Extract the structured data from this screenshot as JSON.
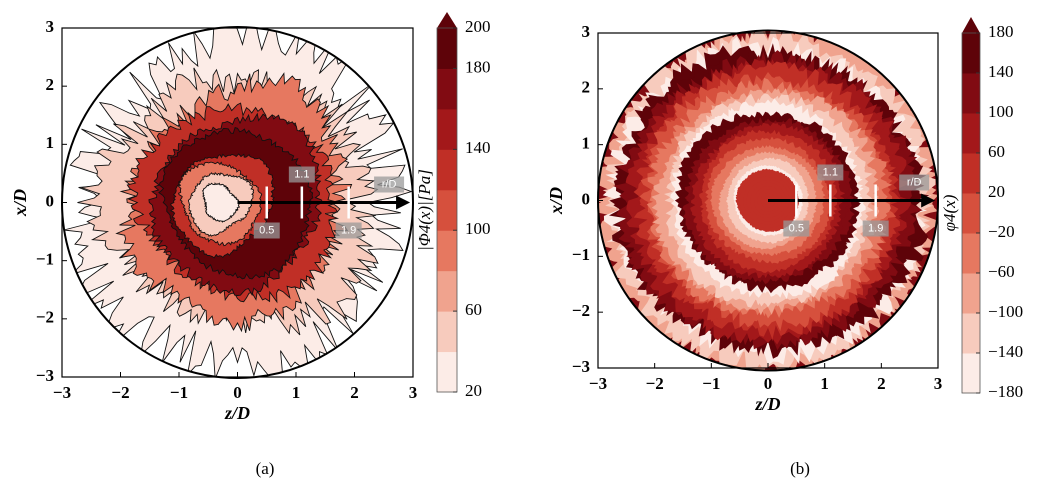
{
  "chart_data": [
    {
      "type": "contour",
      "panel_label": "(a)",
      "xlabel": "z/D",
      "ylabel": "x/D",
      "xlim": [
        -3,
        3
      ],
      "ylim": [
        -3,
        3
      ],
      "xticks": [
        {
          "value": -3,
          "label": "−3"
        },
        {
          "value": -2,
          "label": "−2"
        },
        {
          "value": -1,
          "label": "−1"
        },
        0,
        1,
        2,
        3
      ],
      "yticks": [
        {
          "value": -3,
          "label": "−3"
        },
        {
          "value": -2,
          "label": "−2"
        },
        {
          "value": -1,
          "label": "−1"
        },
        0,
        1,
        2,
        3
      ],
      "radial_markers": [
        0.5,
        1.1,
        1.9
      ],
      "arrow_label": "r/D",
      "colorbar": {
        "label": "|Φ4(x)|[Pa]",
        "lim": [
          20,
          200
        ],
        "ticks": [
          20,
          60,
          100,
          140,
          180,
          200
        ],
        "colors": [
          "#fcece7",
          "#f7cbbd",
          "#f0a38e",
          "#e67860",
          "#d6503d",
          "#c02f26",
          "#a3181a",
          "#810b12",
          "#5e0309"
        ]
      }
    },
    {
      "type": "phase",
      "panel_label": "(b)",
      "xlabel": "z/D",
      "ylabel": "x/D",
      "xlim": [
        -3,
        3
      ],
      "ylim": [
        -3,
        3
      ],
      "xticks": [
        {
          "value": -3,
          "label": "−3"
        },
        {
          "value": -2,
          "label": "−2"
        },
        {
          "value": -1,
          "label": "−1"
        },
        0,
        1,
        2,
        3
      ],
      "yticks": [
        {
          "value": -3,
          "label": "−3"
        },
        {
          "value": -2,
          "label": "−2"
        },
        {
          "value": -1,
          "label": "−1"
        },
        0,
        1,
        2,
        3
      ],
      "radial_markers": [
        0.5,
        1.1,
        1.9
      ],
      "arrow_label": "r/D",
      "colorbar": {
        "label": "φ4(x)",
        "lim": [
          -180,
          180
        ],
        "ticks": [
          {
            "value": -180,
            "label": "−180"
          },
          {
            "value": -140,
            "label": "−140"
          },
          {
            "value": -100,
            "label": "−100"
          },
          {
            "value": -60,
            "label": "−60"
          },
          {
            "value": -20,
            "label": "−20"
          },
          20,
          60,
          100,
          140,
          180
        ],
        "colors": [
          "#fcece7",
          "#f7cbbd",
          "#f0a38e",
          "#e67860",
          "#d6503d",
          "#c02f26",
          "#a3181a",
          "#810b12",
          "#5e0309"
        ]
      }
    }
  ]
}
